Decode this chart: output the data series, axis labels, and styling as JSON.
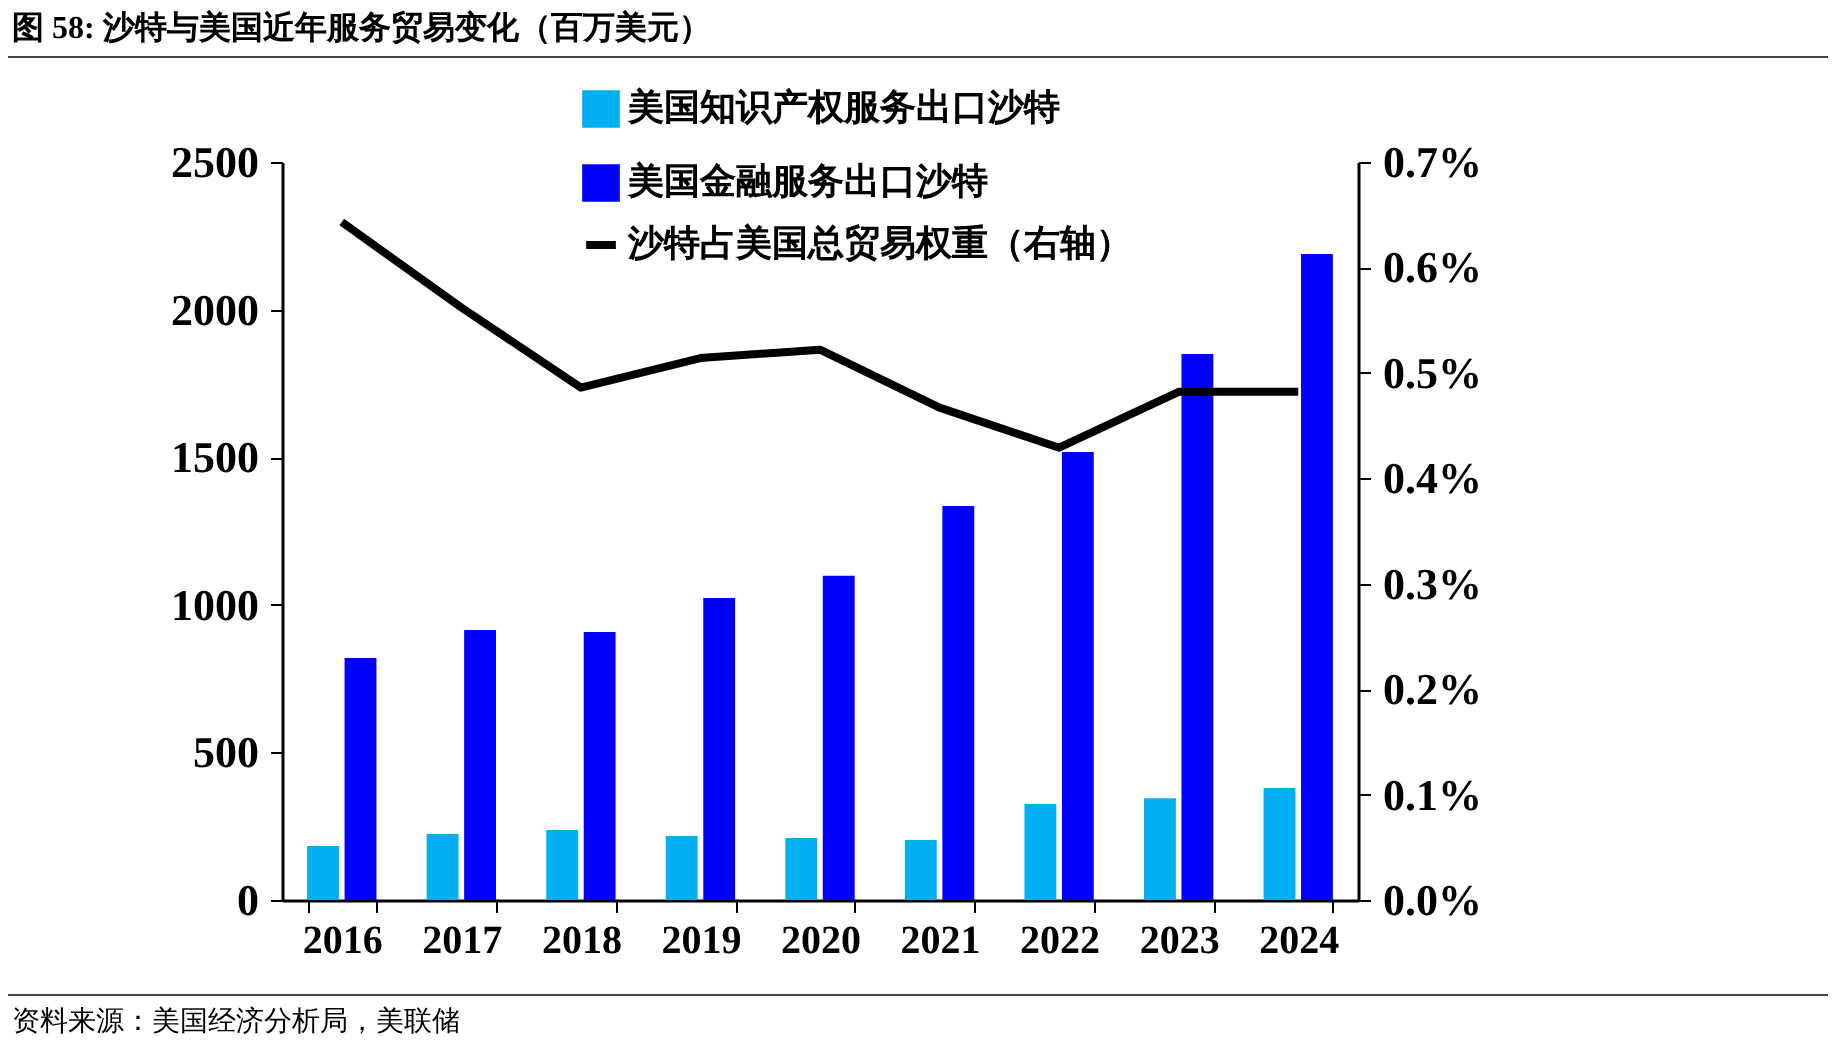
{
  "chart_data": {
    "type": "bar",
    "title": "图 58:  沙特与美国近年服务贸易变化（百万美元）",
    "categories": [
      "2016",
      "2017",
      "2018",
      "2019",
      "2020",
      "2021",
      "2022",
      "2023",
      "2024"
    ],
    "series": [
      {
        "name": "美国知识产权服务出口沙特",
        "color": "#00b0f0",
        "values": [
          183,
          224,
          237,
          217,
          210,
          203,
          325,
          345,
          379
        ]
      },
      {
        "name": "美国金融服务出口沙特",
        "color": "#0000ff",
        "values": [
          820,
          915,
          908,
          1023,
          1098,
          1335,
          1518,
          1850,
          2188
        ]
      },
      {
        "name": "沙特占美国总贸易权重（右轴）",
        "color": "#000000",
        "type": "line",
        "axis": "y2",
        "values": [
          0.643,
          0.562,
          0.486,
          0.514,
          0.522,
          0.467,
          0.429,
          0.482,
          0.482
        ]
      }
    ],
    "ylim": [
      0,
      2500
    ],
    "yticks": [
      0,
      500,
      1000,
      1500,
      2000,
      2500
    ],
    "y2lim": [
      0,
      0.7
    ],
    "y2ticks": [
      {
        "value": 0,
        "label": "0.0%"
      },
      {
        "value": 0.1,
        "label": "0.1%"
      },
      {
        "value": 0.2,
        "label": "0.2%"
      },
      {
        "value": 0.3,
        "label": "0.3%"
      },
      {
        "value": 0.4,
        "label": "0.4%"
      },
      {
        "value": 0.5,
        "label": "0.5%"
      },
      {
        "value": 0.6,
        "label": "0.6%"
      },
      {
        "value": 0.7,
        "label": "0.7%"
      }
    ],
    "legend": "top",
    "grid": false,
    "annotations": [
      "资料来源：美国经济分析局，美联储"
    ]
  }
}
